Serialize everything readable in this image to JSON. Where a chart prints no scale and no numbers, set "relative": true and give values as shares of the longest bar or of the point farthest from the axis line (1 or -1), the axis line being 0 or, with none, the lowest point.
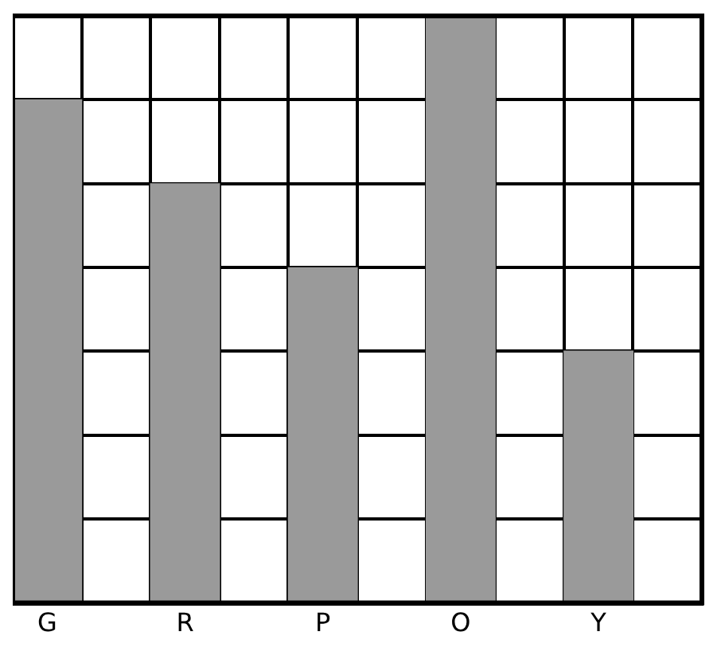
{
  "chart_data": {
    "type": "bar",
    "relative": true,
    "categories": [
      "G",
      "R",
      "P",
      "O",
      "Y"
    ],
    "values": [
      0.857,
      0.714,
      0.571,
      1,
      0.429
    ],
    "color": "#9a9a9a",
    "grid": true
  }
}
